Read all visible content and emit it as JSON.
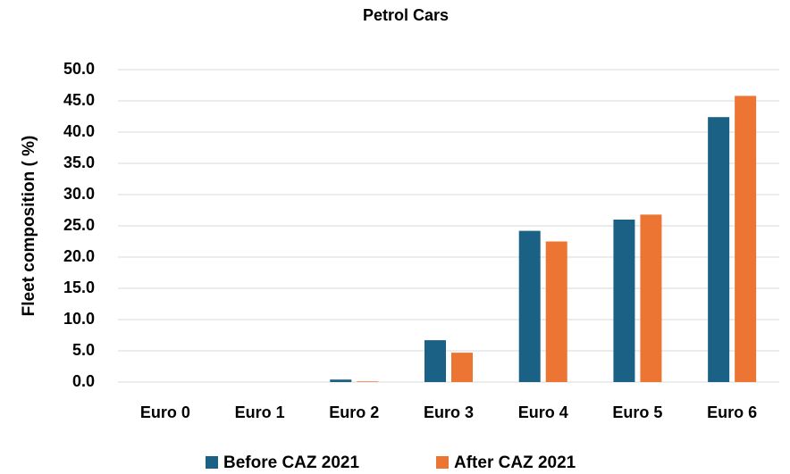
{
  "chart_data": {
    "type": "bar",
    "title": "Petrol Cars",
    "y_label": "Fleet composition ( %)",
    "categories": [
      "Euro 0",
      "Euro 1",
      "Euro 2",
      "Euro 3",
      "Euro 4",
      "Euro 5",
      "Euro 6"
    ],
    "series": [
      {
        "name": "Before CAZ 2021",
        "color": "#1a6185",
        "values": [
          0,
          0,
          0.4,
          6.7,
          24.2,
          26.0,
          42.4
        ]
      },
      {
        "name": "After CAZ 2021",
        "color": "#ec7533",
        "values": [
          0,
          0,
          0.1,
          4.7,
          22.5,
          26.8,
          45.8
        ]
      }
    ],
    "ylim": [
      0,
      50
    ],
    "yticks": [
      {
        "value": 0,
        "label": "0.0"
      },
      {
        "value": 5,
        "label": "5.0"
      },
      {
        "value": 10,
        "label": "10.0"
      },
      {
        "value": 15,
        "label": "15.0"
      },
      {
        "value": 20,
        "label": "20.0"
      },
      {
        "value": 25,
        "label": "25.0"
      },
      {
        "value": 30,
        "label": "30.0"
      },
      {
        "value": 35,
        "label": "35.0"
      },
      {
        "value": 40,
        "label": "40.0"
      },
      {
        "value": 45,
        "label": "45.0"
      },
      {
        "value": 50,
        "label": "50.0"
      }
    ],
    "grid": true,
    "legend": "bottom"
  }
}
